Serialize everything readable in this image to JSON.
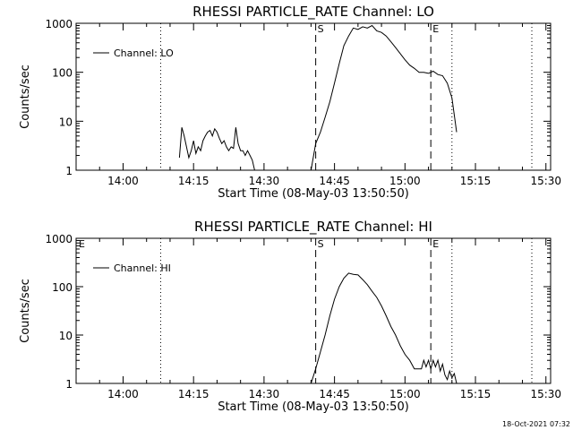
{
  "footer": {
    "timestamp": "18-Oct-2021 07:32"
  },
  "chart_data": [
    {
      "type": "line",
      "title": "RHESSI PARTICLE_RATE Channel: LO",
      "xlabel": "Start Time (08-May-03 13:50:50)",
      "ylabel": "Counts/sec",
      "yscale": "log",
      "ylim": [
        1,
        1000
      ],
      "xlim": [
        "13:50",
        "15:31"
      ],
      "x_ticks": [
        "14:00",
        "14:15",
        "14:30",
        "14:45",
        "15:00",
        "15:15",
        "15:30"
      ],
      "y_ticks": [
        "1",
        "10",
        "100",
        "1000"
      ],
      "legend": {
        "placement": "top-left",
        "entries": [
          "Channel: LO"
        ]
      },
      "markers": [
        {
          "label": "S",
          "time": "14:41",
          "style": "dashed"
        },
        {
          "label": "E",
          "time": "15:05.5",
          "style": "dashed"
        }
      ],
      "night_lines": [
        "14:08",
        "15:10",
        "15:27"
      ],
      "series": [
        {
          "name": "Channel: LO",
          "segments": [
            {
              "x": [
                "14:12",
                "14:12.5",
                "14:13",
                "14:13.5",
                "14:14",
                "14:14.5",
                "14:15",
                "14:15.5",
                "14:16",
                "14:16.5",
                "14:17",
                "14:17.5",
                "14:18",
                "14:18.5",
                "14:19",
                "14:19.5",
                "14:20",
                "14:20.5",
                "14:21",
                "14:21.5",
                "14:22",
                "14:22.5",
                "14:23",
                "14:23.5",
                "14:24",
                "14:24.5",
                "14:25",
                "14:25.5",
                "14:26",
                "14:26.5",
                "14:27",
                "14:27.5",
                "14:28"
              ],
              "y": [
                1.8,
                7.5,
                5,
                3,
                1.8,
                2.5,
                4,
                2.2,
                3,
                2.5,
                4,
                5,
                6,
                6.5,
                5,
                7,
                6,
                4.5,
                3.5,
                4,
                3,
                2.5,
                3,
                2.8,
                7.5,
                3.5,
                2.5,
                2.5,
                2,
                2.5,
                2,
                1.6,
                1
              ]
            },
            {
              "x": [
                "14:40",
                "14:41",
                "14:42",
                "14:43",
                "14:44",
                "14:45",
                "14:46",
                "14:47",
                "14:48",
                "14:49",
                "14:50",
                "14:51",
                "14:52",
                "14:53",
                "14:54",
                "14:55",
                "14:56",
                "14:57",
                "14:58",
                "14:59",
                "15:00",
                "15:01",
                "15:02",
                "15:03",
                "15:04",
                "15:05",
                "15:06",
                "15:07",
                "15:08",
                "15:09",
                "15:10",
                "15:11"
              ],
              "y": [
                1,
                3.5,
                6,
                12,
                25,
                60,
                150,
                350,
                550,
                800,
                750,
                850,
                800,
                900,
                700,
                650,
                550,
                420,
                320,
                240,
                180,
                140,
                120,
                100,
                100,
                95,
                105,
                90,
                85,
                60,
                30,
                6
              ]
            }
          ]
        }
      ]
    },
    {
      "type": "line",
      "title": "RHESSI PARTICLE_RATE Channel: HI",
      "xlabel": "Start Time (08-May-03 13:50:50)",
      "ylabel": "Counts/sec",
      "yscale": "log",
      "ylim": [
        1,
        1000
      ],
      "xlim": [
        "13:50",
        "15:31"
      ],
      "x_ticks": [
        "14:00",
        "14:15",
        "14:30",
        "14:45",
        "15:00",
        "15:15",
        "15:30"
      ],
      "y_ticks": [
        "1",
        "10",
        "100",
        "1000"
      ],
      "legend": {
        "placement": "top-left",
        "entries": [
          "Channel: HI"
        ]
      },
      "markers": [
        {
          "label": "E",
          "time": "13:50.2",
          "style": "dotted"
        },
        {
          "label": "S",
          "time": "14:41",
          "style": "dashed"
        },
        {
          "label": "E",
          "time": "15:05.5",
          "style": "dashed"
        }
      ],
      "night_lines": [
        "14:08",
        "15:10",
        "15:27"
      ],
      "series": [
        {
          "name": "Channel: HI",
          "segments": [
            {
              "x": [
                "14:40",
                "14:41",
                "14:42",
                "14:43",
                "14:44",
                "14:45",
                "14:46",
                "14:47",
                "14:48",
                "14:49",
                "14:50",
                "14:51",
                "14:52",
                "14:53",
                "14:54",
                "14:55",
                "14:56",
                "14:57",
                "14:58",
                "14:59",
                "15:00",
                "15:01",
                "15:02",
                "15:03",
                "15:03.5",
                "15:04",
                "15:04.5",
                "15:05",
                "15:05.5",
                "15:06",
                "15:06.5",
                "15:07",
                "15:07.5",
                "15:08",
                "15:08.5",
                "15:09",
                "15:09.5",
                "15:10",
                "15:10.5",
                "15:11"
              ],
              "y": [
                1,
                2,
                4.5,
                10,
                25,
                55,
                100,
                150,
                190,
                180,
                175,
                140,
                110,
                80,
                60,
                40,
                25,
                15,
                10,
                6,
                4,
                3,
                2,
                2,
                2,
                3,
                2.2,
                3,
                2,
                3,
                2.2,
                3,
                1.8,
                2.5,
                1.5,
                1.2,
                1.8,
                1.3,
                1.6,
                1
              ]
            }
          ]
        }
      ]
    }
  ]
}
